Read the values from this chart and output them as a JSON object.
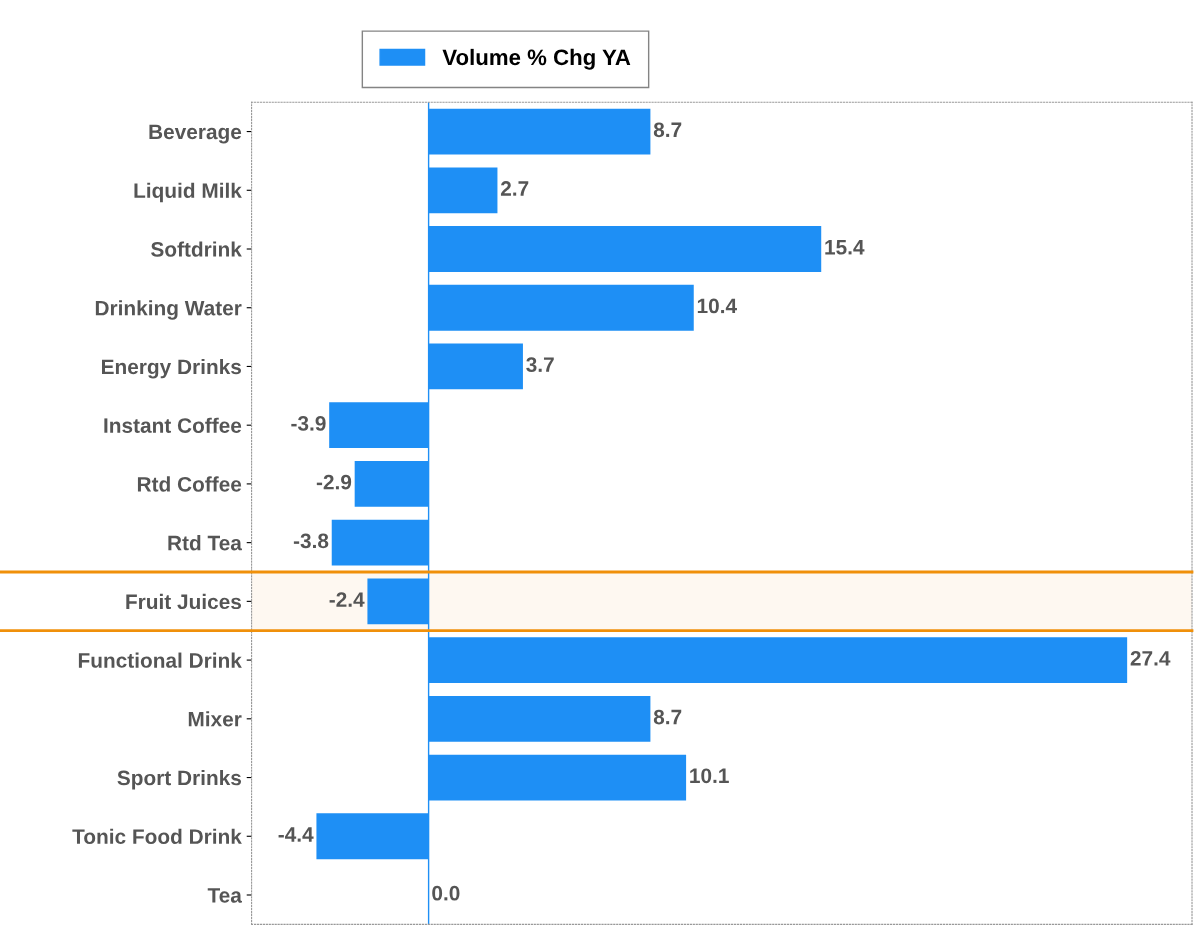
{
  "chart_data": {
    "type": "bar",
    "orientation": "horizontal",
    "categories": [
      "Beverage",
      "Liquid Milk",
      "Softdrink",
      "Drinking Water",
      "Energy Drinks",
      "Instant Coffee",
      "Rtd Coffee",
      "Rtd Tea",
      "Fruit Juices",
      "Functional Drink",
      "Mixer",
      "Sport Drinks",
      "Tonic Food Drink",
      "Tea"
    ],
    "series": [
      {
        "name": "Volume % Chg YA",
        "color": "#1e8ff5",
        "values": [
          8.7,
          2.7,
          15.4,
          10.4,
          3.7,
          -3.9,
          -2.9,
          -3.8,
          -2.4,
          27.4,
          8.7,
          10.1,
          -4.4,
          0.0
        ],
        "value_labels": [
          "8.7",
          "2.7",
          "15.4",
          "10.4",
          "3.7",
          "-3.9",
          "-2.9",
          "-3.8",
          "-2.4",
          "27.4",
          "8.7",
          "10.1",
          "-4.4",
          "0.0"
        ]
      }
    ],
    "bands": [
      {
        "axis": "y",
        "from": "Fruit Juices",
        "to": "Fruit Juices",
        "color": "#f0900a"
      }
    ],
    "ref_lines": [
      {
        "axis": "x",
        "value": 0,
        "color": "#1e8ff5"
      }
    ],
    "legend": "top",
    "grid": false
  }
}
